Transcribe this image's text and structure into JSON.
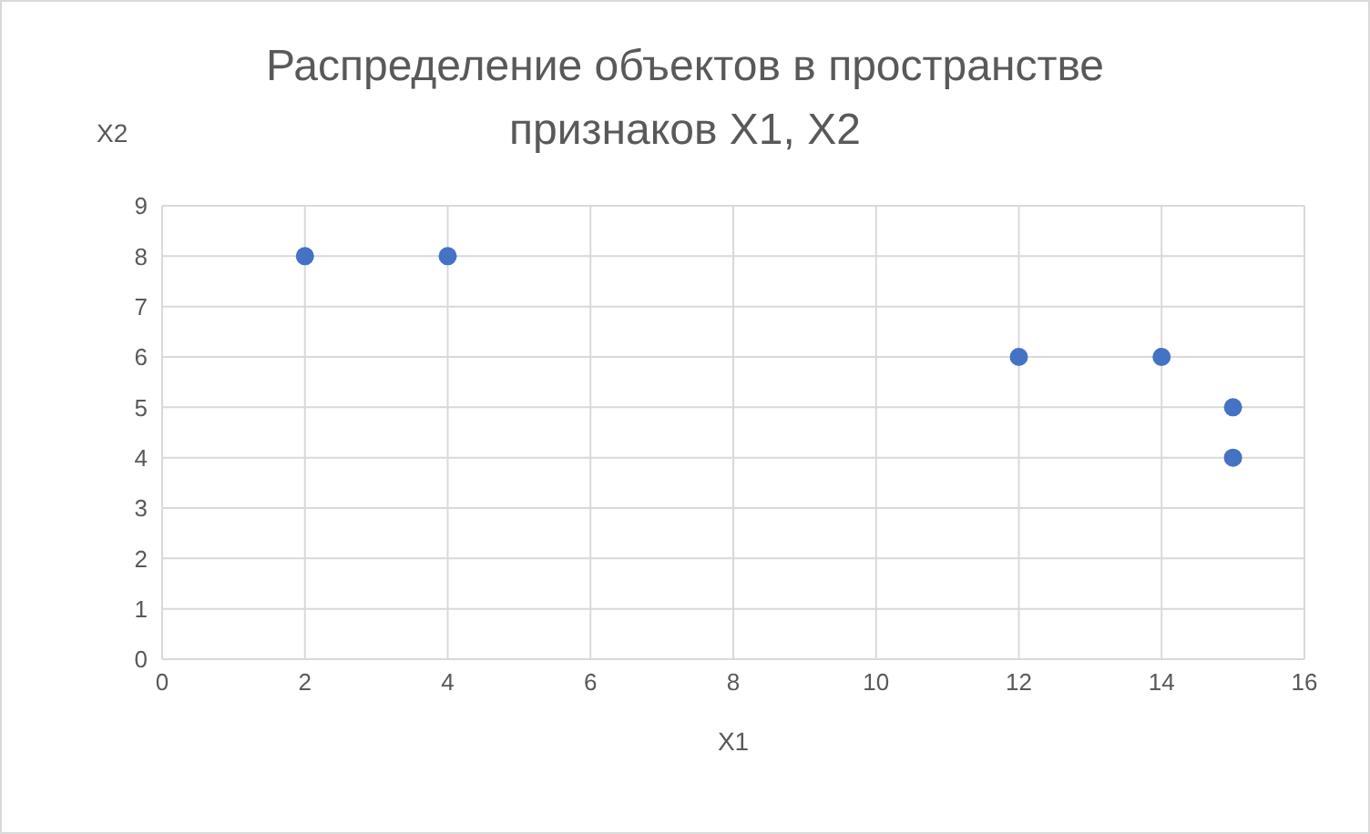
{
  "chart_data": {
    "type": "scatter",
    "title": "Распределение объектов в пространстве признаков X1, X2",
    "xlabel": "X1",
    "ylabel": "X2",
    "x": [
      2,
      4,
      12,
      14,
      15,
      15
    ],
    "values": [
      8,
      8,
      6,
      6,
      5,
      4
    ],
    "color": "#4472c4",
    "marker": "circle",
    "grid": true,
    "xlim": [
      0,
      16
    ],
    "xticks": [
      0,
      2,
      4,
      6,
      8,
      10,
      12,
      14,
      16
    ],
    "ylim": [
      0,
      9
    ],
    "yticks": [
      0,
      1,
      2,
      3,
      4,
      5,
      6,
      7,
      8,
      9
    ]
  }
}
